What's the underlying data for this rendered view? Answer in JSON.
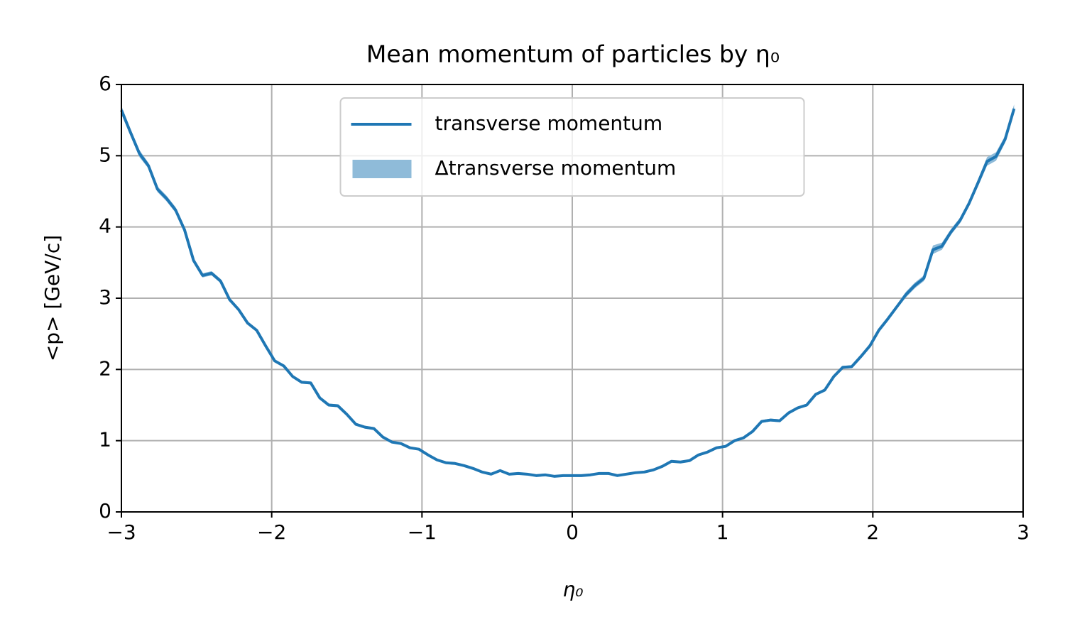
{
  "chart_data": {
    "type": "line",
    "title": "Mean momentum of particles by η₀",
    "xlabel": "η₀",
    "ylabel": "<p> [GeV/c]",
    "x": [
      -3,
      -2.94,
      -2.88,
      -2.82,
      -2.76,
      -2.7,
      -2.64,
      -2.58,
      -2.52,
      -2.46,
      -2.4,
      -2.34,
      -2.28,
      -2.22,
      -2.16,
      -2.1,
      -2.04,
      -1.98,
      -1.92,
      -1.86,
      -1.8,
      -1.74,
      -1.68,
      -1.62,
      -1.56,
      -1.5,
      -1.44,
      -1.38,
      -1.32,
      -1.26,
      -1.2,
      -1.14,
      -1.08,
      -1.02,
      -0.96,
      -0.9,
      -0.84,
      -0.78,
      -0.72,
      -0.66,
      -0.6,
      -0.54,
      -0.48,
      -0.42,
      -0.36,
      -0.3,
      -0.24,
      -0.18,
      -0.12,
      -0.06,
      0,
      0.06,
      0.12,
      0.18,
      0.24,
      0.3,
      0.36,
      0.42,
      0.48,
      0.54,
      0.6,
      0.66,
      0.72,
      0.78,
      0.84,
      0.9,
      0.96,
      1.02,
      1.08,
      1.14,
      1.2,
      1.26,
      1.32,
      1.38,
      1.44,
      1.5,
      1.56,
      1.62,
      1.68,
      1.74,
      1.8,
      1.86,
      1.92,
      1.98,
      2.04,
      2.1,
      2.16,
      2.22,
      2.28,
      2.34,
      2.4,
      2.46,
      2.52,
      2.58,
      2.64,
      2.7,
      2.76,
      2.82,
      2.88,
      2.94
    ],
    "series": [
      {
        "name": "transverse momentum",
        "color": "#1f77b4",
        "values": [
          5.64,
          5.33,
          5.03,
          4.86,
          4.53,
          4.4,
          4.24,
          3.96,
          3.53,
          3.32,
          3.35,
          3.24,
          2.98,
          2.84,
          2.65,
          2.55,
          2.33,
          2.12,
          2.05,
          1.9,
          1.82,
          1.81,
          1.6,
          1.5,
          1.49,
          1.37,
          1.23,
          1.19,
          1.17,
          1.05,
          0.98,
          0.96,
          0.9,
          0.88,
          0.8,
          0.73,
          0.69,
          0.68,
          0.65,
          0.61,
          0.56,
          0.53,
          0.58,
          0.53,
          0.54,
          0.53,
          0.51,
          0.52,
          0.5,
          0.51,
          0.51,
          0.51,
          0.52,
          0.54,
          0.54,
          0.51,
          0.53,
          0.55,
          0.56,
          0.59,
          0.64,
          0.71,
          0.7,
          0.72,
          0.8,
          0.84,
          0.9,
          0.92,
          1.0,
          1.04,
          1.13,
          1.27,
          1.29,
          1.28,
          1.39,
          1.46,
          1.5,
          1.65,
          1.71,
          1.9,
          2.03,
          2.04,
          2.18,
          2.33,
          2.55,
          2.71,
          2.88,
          3.05,
          3.18,
          3.28,
          3.68,
          3.73,
          3.93,
          4.09,
          4.33,
          4.62,
          4.92,
          4.99,
          5.23,
          5.66
        ]
      },
      {
        "name": "Δtransverse momentum",
        "color": "#8fbbd9",
        "errors": [
          0.06,
          0.05,
          0.05,
          0.04,
          0.04,
          0.04,
          0.04,
          0.03,
          0.03,
          0.03,
          0.03,
          0.03,
          0.02,
          0.02,
          0.02,
          0.02,
          0.02,
          0.02,
          0.02,
          0.02,
          0.02,
          0.02,
          0.02,
          0.02,
          0.02,
          0.02,
          0.02,
          0.02,
          0.02,
          0.02,
          0.01,
          0.01,
          0.01,
          0.01,
          0.01,
          0.01,
          0.01,
          0.01,
          0.01,
          0.01,
          0.01,
          0.01,
          0.01,
          0.01,
          0.01,
          0.01,
          0.01,
          0.01,
          0.01,
          0.01,
          0.01,
          0.01,
          0.01,
          0.01,
          0.01,
          0.01,
          0.01,
          0.01,
          0.01,
          0.01,
          0.01,
          0.01,
          0.01,
          0.01,
          0.01,
          0.01,
          0.01,
          0.01,
          0.01,
          0.01,
          0.02,
          0.02,
          0.02,
          0.02,
          0.02,
          0.02,
          0.02,
          0.02,
          0.02,
          0.02,
          0.02,
          0.02,
          0.02,
          0.02,
          0.03,
          0.03,
          0.03,
          0.04,
          0.04,
          0.04,
          0.06,
          0.05,
          0.04,
          0.04,
          0.04,
          0.05,
          0.06,
          0.06,
          0.05,
          0.06
        ]
      }
    ],
    "xlim": [
      -3,
      3
    ],
    "xticks": [
      {
        "value": -3,
        "label": "−3"
      },
      {
        "value": -2,
        "label": "−2"
      },
      {
        "value": -1,
        "label": "−1"
      },
      0,
      1,
      2,
      3
    ],
    "ylim": [
      0,
      6
    ],
    "yticks": [
      0,
      1,
      2,
      3,
      4,
      5,
      6
    ],
    "grid": true,
    "legend": "upper center"
  }
}
